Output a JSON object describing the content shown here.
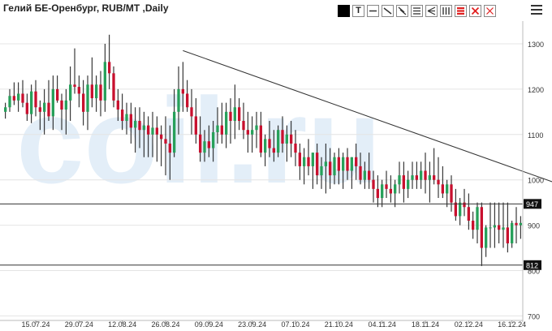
{
  "header": {
    "title": "Гелий БЕ-Оренбург, RUB/MT ,Daily"
  },
  "toolbar": {
    "tools": [
      {
        "name": "color-picker-button",
        "icon": "color-square-icon"
      },
      {
        "name": "text-tool-button",
        "icon": "text-T-icon",
        "label": "T"
      },
      {
        "name": "horizontal-line-tool-button",
        "icon": "horizontal-line-icon"
      },
      {
        "name": "trend-line-tool-button",
        "icon": "diagonal-line-icon"
      },
      {
        "name": "parallel-lines-tool-button",
        "icon": "parallel-diagonal-lines-icon"
      },
      {
        "name": "channel-tool-button",
        "icon": "horizontal-channel-icon"
      },
      {
        "name": "fan-tool-button",
        "icon": "fan-lines-icon"
      },
      {
        "name": "vertical-lines-tool-button",
        "icon": "vertical-lines-icon"
      },
      {
        "name": "fibonacci-tool-button",
        "icon": "fibonacci-levels-icon"
      },
      {
        "name": "delete-selected-button",
        "icon": "delete-x-icon"
      },
      {
        "name": "delete-all-button",
        "icon": "delete-x-outline-icon"
      }
    ],
    "colors": {
      "black": "#000000",
      "red": "#e02020",
      "icon_gray": "#333333"
    }
  },
  "colors": {
    "up": "#27a05a",
    "down": "#c8102e",
    "wick": "#111111",
    "grid": "#e4e4e4",
    "watermark": "#e3eef8",
    "level_label_bg": "#111111"
  },
  "chart_data": {
    "type": "candlestick",
    "title": "Гелий БЕ-Оренбург, RUB/MT ,Daily",
    "watermark": "coil.ru",
    "y_ticks": [
      700,
      800,
      900,
      1000,
      1100,
      1200,
      1300
    ],
    "ylim": [
      690,
      1325
    ],
    "x_ticks": [
      "15.07.24",
      "29.07.24",
      "12.08.24",
      "26.08.24",
      "09.09.24",
      "23.09.24",
      "07.10.24",
      "21.10.24",
      "04.11.24",
      "18.11.24",
      "02.12.24",
      "16.12.24"
    ],
    "x_tick_index": [
      7,
      17,
      27,
      37,
      47,
      57,
      67,
      77,
      87,
      97,
      107,
      117
    ],
    "levels": [
      {
        "value": 947,
        "label": "947"
      },
      {
        "value": 812,
        "label": "812"
      }
    ],
    "trend_line": {
      "from": {
        "index": 41,
        "value": 1285
      },
      "to": {
        "index": 128,
        "value": 990
      }
    },
    "candles": [
      [
        1150,
        1170,
        1135,
        1160
      ],
      [
        1160,
        1200,
        1150,
        1185
      ],
      [
        1185,
        1215,
        1165,
        1175
      ],
      [
        1175,
        1215,
        1150,
        1190
      ],
      [
        1190,
        1220,
        1160,
        1170
      ],
      [
        1170,
        1190,
        1130,
        1145
      ],
      [
        1145,
        1210,
        1125,
        1195
      ],
      [
        1195,
        1220,
        1140,
        1160
      ],
      [
        1160,
        1175,
        1110,
        1150
      ],
      [
        1150,
        1200,
        1100,
        1170
      ],
      [
        1170,
        1220,
        1130,
        1140
      ],
      [
        1140,
        1230,
        1110,
        1200
      ],
      [
        1200,
        1230,
        1170,
        1175
      ],
      [
        1175,
        1190,
        1110,
        1155
      ],
      [
        1155,
        1200,
        1100,
        1175
      ],
      [
        1175,
        1250,
        1130,
        1210
      ],
      [
        1210,
        1290,
        1190,
        1205
      ],
      [
        1205,
        1230,
        1160,
        1190
      ],
      [
        1190,
        1220,
        1120,
        1150
      ],
      [
        1150,
        1230,
        1110,
        1210
      ],
      [
        1210,
        1270,
        1160,
        1180
      ],
      [
        1180,
        1230,
        1150,
        1210
      ],
      [
        1210,
        1240,
        1140,
        1175
      ],
      [
        1175,
        1300,
        1150,
        1260
      ],
      [
        1260,
        1320,
        1200,
        1235
      ],
      [
        1235,
        1250,
        1160,
        1175
      ],
      [
        1175,
        1200,
        1130,
        1155
      ],
      [
        1155,
        1190,
        1110,
        1130
      ],
      [
        1130,
        1170,
        1100,
        1145
      ],
      [
        1145,
        1170,
        1080,
        1115
      ],
      [
        1115,
        1160,
        1060,
        1130
      ],
      [
        1130,
        1160,
        1070,
        1110
      ],
      [
        1110,
        1150,
        1050,
        1120
      ],
      [
        1120,
        1140,
        1050,
        1100
      ],
      [
        1100,
        1150,
        1050,
        1115
      ],
      [
        1115,
        1140,
        1040,
        1100
      ],
      [
        1100,
        1120,
        1030,
        1090
      ],
      [
        1090,
        1140,
        1010,
        1080
      ],
      [
        1080,
        1120,
        1000,
        1060
      ],
      [
        1060,
        1200,
        1050,
        1150
      ],
      [
        1150,
        1250,
        1100,
        1200
      ],
      [
        1200,
        1260,
        1150,
        1190
      ],
      [
        1190,
        1220,
        1150,
        1160
      ],
      [
        1160,
        1200,
        1100,
        1140
      ],
      [
        1140,
        1180,
        1080,
        1100
      ],
      [
        1100,
        1140,
        1040,
        1060
      ],
      [
        1060,
        1110,
        1040,
        1085
      ],
      [
        1085,
        1120,
        1050,
        1070
      ],
      [
        1070,
        1130,
        1040,
        1105
      ],
      [
        1105,
        1160,
        1080,
        1120
      ],
      [
        1120,
        1170,
        1080,
        1100
      ],
      [
        1100,
        1170,
        1070,
        1150
      ],
      [
        1150,
        1180,
        1080,
        1130
      ],
      [
        1130,
        1210,
        1090,
        1160
      ],
      [
        1160,
        1180,
        1110,
        1130
      ],
      [
        1130,
        1170,
        1090,
        1110
      ],
      [
        1110,
        1150,
        1060,
        1100
      ],
      [
        1100,
        1140,
        1060,
        1110
      ],
      [
        1110,
        1150,
        1070,
        1120
      ],
      [
        1120,
        1150,
        1050,
        1060
      ],
      [
        1060,
        1100,
        1030,
        1090
      ],
      [
        1090,
        1130,
        1050,
        1070
      ],
      [
        1070,
        1110,
        1040,
        1060
      ],
      [
        1060,
        1120,
        1050,
        1110
      ],
      [
        1110,
        1140,
        1060,
        1080
      ],
      [
        1080,
        1120,
        1040,
        1100
      ],
      [
        1100,
        1130,
        1050,
        1080
      ],
      [
        1080,
        1110,
        1030,
        1060
      ],
      [
        1060,
        1080,
        1000,
        1030
      ],
      [
        1030,
        1070,
        990,
        1050
      ],
      [
        1050,
        1090,
        1010,
        1030
      ],
      [
        1030,
        1060,
        980,
        1060
      ],
      [
        1060,
        1080,
        990,
        1010
      ],
      [
        1010,
        1050,
        980,
        1030
      ],
      [
        1030,
        1080,
        970,
        1040
      ],
      [
        1040,
        1070,
        980,
        1010
      ],
      [
        1010,
        1060,
        990,
        1050
      ],
      [
        1050,
        1070,
        990,
        1020
      ],
      [
        1020,
        1060,
        980,
        1050
      ],
      [
        1050,
        1070,
        1000,
        1020
      ],
      [
        1020,
        1050,
        980,
        1050
      ],
      [
        1050,
        1080,
        1000,
        1030
      ],
      [
        1030,
        1060,
        990,
        1000
      ],
      [
        1000,
        1040,
        980,
        1020
      ],
      [
        1020,
        1060,
        980,
        1000
      ],
      [
        1000,
        1020,
        950,
        980
      ],
      [
        980,
        1010,
        940,
        960
      ],
      [
        960,
        1000,
        940,
        990
      ],
      [
        990,
        1020,
        960,
        980
      ],
      [
        980,
        1010,
        950,
        970
      ],
      [
        970,
        1000,
        940,
        990
      ],
      [
        990,
        1040,
        970,
        1010
      ],
      [
        1010,
        1040,
        950,
        980
      ],
      [
        980,
        1020,
        960,
        1000
      ],
      [
        1000,
        1040,
        980,
        1010
      ],
      [
        1010,
        1040,
        980,
        1000
      ],
      [
        1000,
        1040,
        980,
        1020
      ],
      [
        1020,
        1060,
        970,
        1000
      ],
      [
        1000,
        1040,
        950,
        1010
      ],
      [
        1010,
        1070,
        990,
        1000
      ],
      [
        1000,
        1050,
        960,
        990
      ],
      [
        990,
        1030,
        960,
        970
      ],
      [
        970,
        1000,
        940,
        990
      ],
      [
        990,
        1010,
        930,
        950
      ],
      [
        950,
        980,
        910,
        920
      ],
      [
        920,
        960,
        900,
        950
      ],
      [
        950,
        980,
        920,
        940
      ],
      [
        940,
        970,
        890,
        910
      ],
      [
        910,
        930,
        870,
        890
      ],
      [
        890,
        950,
        860,
        940
      ],
      [
        940,
        950,
        810,
        850
      ],
      [
        850,
        900,
        830,
        895
      ],
      [
        895,
        950,
        850,
        895
      ],
      [
        895,
        950,
        850,
        900
      ],
      [
        900,
        950,
        860,
        890
      ],
      [
        890,
        950,
        850,
        895
      ],
      [
        895,
        950,
        840,
        860
      ],
      [
        860,
        910,
        850,
        905
      ],
      [
        905,
        940,
        860,
        900
      ],
      [
        900,
        920,
        870,
        905
      ]
    ]
  }
}
